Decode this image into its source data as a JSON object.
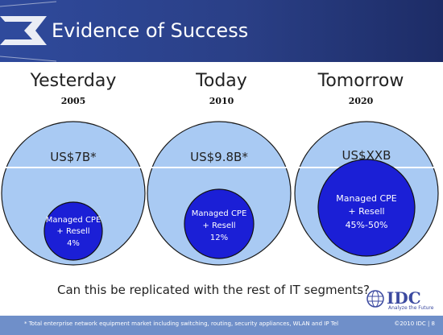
{
  "header": {
    "title": "Evidence of Success"
  },
  "columns": [
    {
      "era": "Yesterday",
      "year": "2005",
      "market": "US$7B*",
      "inner_lines": [
        "Managed CPE",
        "+ Resell",
        "4%"
      ]
    },
    {
      "era": "Today",
      "year": "2010",
      "market": "US$9.8B*",
      "inner_lines": [
        "Managed CPE",
        "+ Resell",
        "12%"
      ]
    },
    {
      "era": "Tomorrow",
      "year": "2020",
      "market": "US$XXB",
      "inner_lines": [
        "Managed CPE",
        "+ Resell",
        "45%-50%"
      ]
    }
  ],
  "question": "Can this be replicated with the rest of IT segments?",
  "logo": {
    "brand": "IDC",
    "tagline": "Analyze the Future"
  },
  "footer": {
    "note": "* Total enterprise network equipment market including switching, routing, security appliances, WLAN and IP Tel",
    "copyright": "©2010 IDC | 8"
  },
  "colors": {
    "outer_circle": "#a9caf3",
    "inner_circle": "#1b1fd6",
    "header": "#2a3f86",
    "footer": "#6f8fc9"
  }
}
